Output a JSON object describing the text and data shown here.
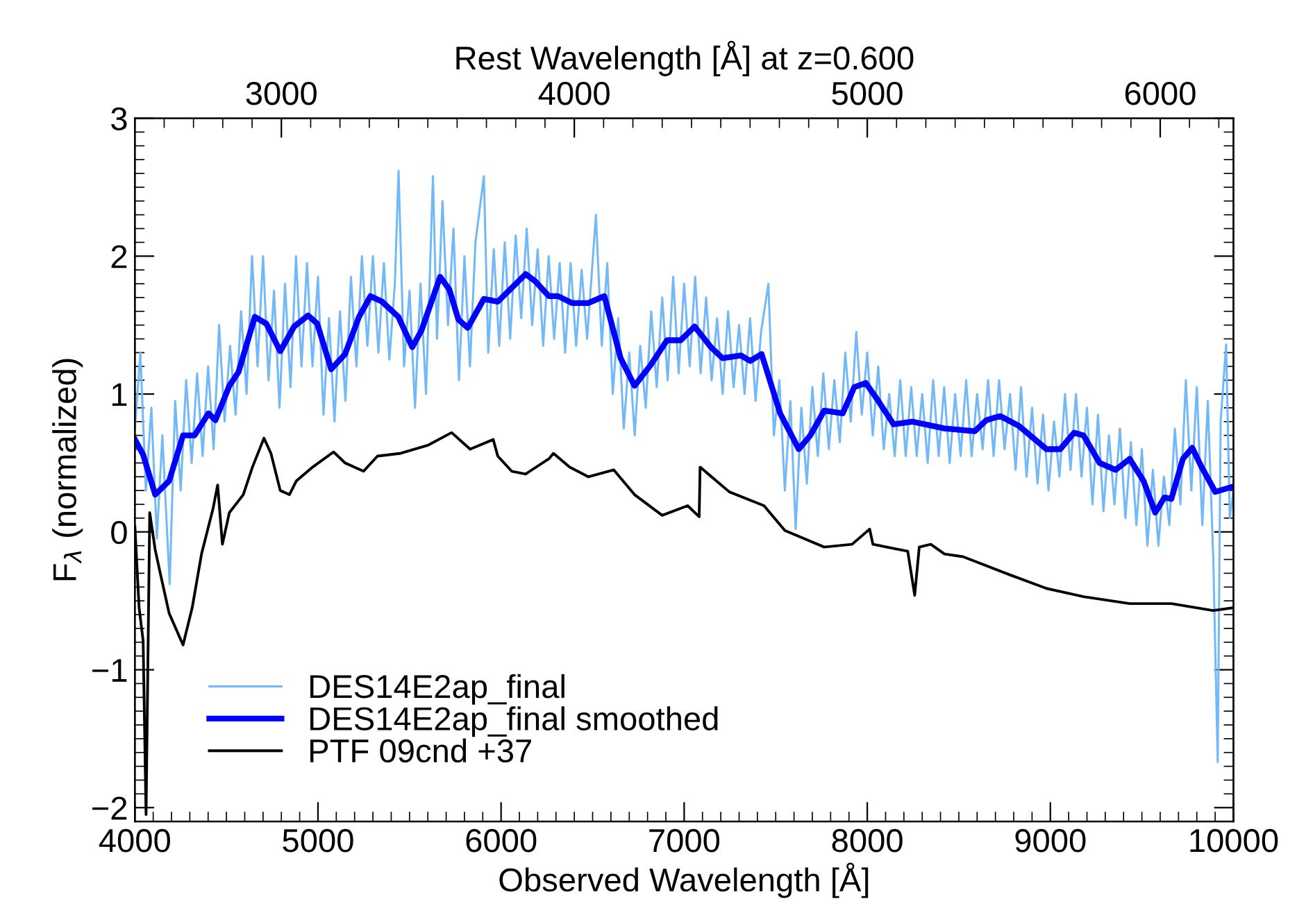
{
  "chart_data": {
    "type": "line",
    "xlabel": "Observed Wavelength [Å]",
    "ylabel": "F$_{λ}$ (normalized)",
    "x2label": "Rest Wavelength [Å] at z=0.600",
    "xlim": [
      4000,
      10000
    ],
    "xticks": [
      4000,
      5000,
      6000,
      7000,
      8000,
      9000,
      10000
    ],
    "x2lim": [
      2500,
      6250
    ],
    "x2ticks": [
      3000,
      4000,
      5000,
      6000
    ],
    "ylim": [
      -2.1,
      3
    ],
    "yticks": [
      {
        "value": -2,
        "label": "−2"
      },
      {
        "value": -1,
        "label": "−1"
      },
      0,
      1,
      2,
      3
    ],
    "legend": "bottom left",
    "grid": false,
    "series": [
      {
        "name": "DES14E2ap_final",
        "color": "#74b9f7",
        "x": [
          4000,
          4030,
          4060,
          4090,
          4120,
          4150,
          4190,
          4220,
          4250,
          4280,
          4310,
          4340,
          4370,
          4400,
          4430,
          4460,
          4490,
          4520,
          4550,
          4580,
          4610,
          4640,
          4670,
          4700,
          4730,
          4760,
          4790,
          4820,
          4850,
          4880,
          4910,
          4940,
          4970,
          5000,
          5030,
          5060,
          5090,
          5120,
          5150,
          5180,
          5210,
          5240,
          5270,
          5300,
          5330,
          5360,
          5390,
          5420,
          5440,
          5470,
          5500,
          5530,
          5560,
          5590,
          5628,
          5650,
          5680,
          5710,
          5740,
          5770,
          5800,
          5830,
          5860,
          5906,
          5930,
          5960,
          5990,
          6020,
          6050,
          6080,
          6110,
          6140,
          6170,
          6200,
          6230,
          6260,
          6290,
          6320,
          6350,
          6380,
          6410,
          6440,
          6470,
          6518,
          6550,
          6580,
          6610,
          6640,
          6670,
          6700,
          6730,
          6760,
          6790,
          6820,
          6850,
          6880,
          6910,
          6940,
          6970,
          7000,
          7030,
          7060,
          7090,
          7120,
          7150,
          7180,
          7210,
          7240,
          7270,
          7300,
          7330,
          7360,
          7390,
          7420,
          7460,
          7490,
          7520,
          7550,
          7580,
          7609,
          7640,
          7670,
          7700,
          7730,
          7760,
          7790,
          7820,
          7850,
          7880,
          7910,
          7940,
          7970,
          8000,
          8030,
          8060,
          8090,
          8120,
          8150,
          8180,
          8210,
          8240,
          8270,
          8300,
          8330,
          8360,
          8390,
          8420,
          8450,
          8480,
          8510,
          8540,
          8570,
          8600,
          8630,
          8660,
          8690,
          8720,
          8750,
          8780,
          8810,
          8840,
          8870,
          8900,
          8930,
          8960,
          8990,
          9020,
          9050,
          9080,
          9110,
          9140,
          9170,
          9200,
          9230,
          9260,
          9290,
          9320,
          9350,
          9380,
          9410,
          9440,
          9470,
          9500,
          9530,
          9560,
          9590,
          9620,
          9650,
          9680,
          9710,
          9740,
          9770,
          9800,
          9830,
          9860,
          9890,
          9914,
          9930,
          9960,
          9980,
          10000
        ],
        "values": [
          0.75,
          1.3,
          0.3,
          0.9,
          -0.05,
          0.7,
          -0.38,
          0.95,
          0.3,
          1.1,
          0.5,
          1.15,
          0.55,
          1.2,
          0.6,
          1.5,
          0.8,
          1.35,
          0.85,
          1.6,
          1.0,
          2.0,
          1.2,
          2.0,
          1.1,
          1.75,
          0.9,
          1.8,
          1.05,
          2.0,
          1.2,
          1.95,
          1.2,
          1.85,
          0.85,
          1.55,
          0.8,
          1.6,
          0.95,
          1.85,
          1.2,
          2.0,
          1.35,
          2.0,
          1.3,
          1.95,
          1.25,
          1.8,
          2.62,
          1.2,
          1.75,
          0.9,
          1.8,
          1.0,
          2.58,
          1.4,
          2.4,
          1.5,
          2.2,
          1.1,
          2.0,
          1.2,
          2.1,
          2.58,
          1.3,
          2.05,
          1.35,
          2.1,
          1.4,
          2.15,
          1.55,
          2.2,
          1.5,
          2.05,
          1.35,
          2.0,
          1.4,
          1.95,
          1.3,
          1.95,
          1.35,
          1.9,
          1.4,
          2.3,
          1.35,
          1.95,
          1.0,
          1.55,
          0.75,
          1.3,
          0.7,
          1.35,
          0.9,
          1.6,
          1.05,
          1.7,
          1.1,
          1.85,
          1.15,
          1.8,
          1.2,
          1.85,
          1.15,
          1.7,
          1.1,
          1.55,
          1.0,
          1.6,
          1.05,
          1.5,
          1.0,
          1.55,
          0.95,
          1.45,
          1.8,
          0.7,
          1.1,
          0.3,
          0.95,
          0.02,
          0.9,
          0.35,
          1.05,
          0.55,
          1.15,
          0.6,
          1.1,
          0.65,
          1.3,
          0.8,
          1.45,
          0.85,
          1.3,
          0.7,
          1.2,
          0.6,
          1.0,
          0.55,
          1.1,
          0.55,
          1.05,
          0.55,
          1.0,
          0.5,
          1.1,
          0.55,
          1.05,
          0.5,
          1.0,
          0.55,
          1.1,
          0.55,
          1.0,
          0.6,
          1.1,
          0.55,
          1.1,
          0.6,
          1.0,
          0.45,
          1.05,
          0.4,
          0.9,
          0.35,
          0.85,
          0.3,
          0.8,
          0.4,
          1.0,
          0.45,
          1.0,
          0.4,
          0.9,
          0.2,
          0.85,
          0.15,
          0.7,
          0.2,
          0.75,
          0.1,
          0.65,
          0.05,
          0.6,
          -0.1,
          0.45,
          -0.1,
          0.4,
          0.05,
          0.75,
          0.2,
          1.1,
          0.3,
          1.05,
          0.05,
          0.95,
          -0.2,
          -1.67,
          0.8,
          1.36,
          0.1,
          0.3
        ]
      },
      {
        "name": "DES14E2ap_final smoothed",
        "color": "#0000ff",
        "x": [
          4000,
          4045,
          4111,
          4187,
          4263,
          4326,
          4402,
          4440,
          4516,
          4566,
          4655,
          4718,
          4794,
          4870,
          4946,
          4996,
          5072,
          5148,
          5224,
          5287,
          5350,
          5439,
          5515,
          5565,
          5667,
          5717,
          5767,
          5818,
          5906,
          5982,
          6058,
          6134,
          6185,
          6261,
          6311,
          6387,
          6476,
          6564,
          6653,
          6729,
          6817,
          6906,
          6981,
          7057,
          7146,
          7209,
          7310,
          7360,
          7423,
          7524,
          7626,
          7689,
          7765,
          7866,
          7929,
          7992,
          8055,
          8144,
          8245,
          8422,
          8587,
          8650,
          8726,
          8827,
          8979,
          9054,
          9130,
          9181,
          9269,
          9357,
          9433,
          9509,
          9573,
          9623,
          9661,
          9724,
          9775,
          9826,
          9901,
          10000
        ],
        "values": [
          0.67,
          0.56,
          0.27,
          0.37,
          0.7,
          0.7,
          0.86,
          0.81,
          1.06,
          1.16,
          1.56,
          1.51,
          1.31,
          1.49,
          1.57,
          1.51,
          1.18,
          1.29,
          1.56,
          1.71,
          1.67,
          1.56,
          1.34,
          1.46,
          1.85,
          1.76,
          1.54,
          1.48,
          1.69,
          1.67,
          1.77,
          1.87,
          1.82,
          1.71,
          1.71,
          1.66,
          1.66,
          1.71,
          1.26,
          1.06,
          1.21,
          1.39,
          1.39,
          1.49,
          1.34,
          1.26,
          1.28,
          1.24,
          1.29,
          0.86,
          0.6,
          0.7,
          0.88,
          0.86,
          1.05,
          1.08,
          0.96,
          0.78,
          0.8,
          0.75,
          0.73,
          0.81,
          0.84,
          0.77,
          0.6,
          0.6,
          0.72,
          0.7,
          0.5,
          0.45,
          0.53,
          0.37,
          0.14,
          0.25,
          0.24,
          0.53,
          0.61,
          0.47,
          0.29,
          0.33
        ]
      },
      {
        "name": "PTF 09cnd +37",
        "color": "#000000",
        "x": [
          4000,
          4023,
          4045,
          4061,
          4081,
          4111,
          4137,
          4187,
          4263,
          4313,
          4364,
          4427,
          4452,
          4478,
          4516,
          4592,
          4642,
          4705,
          4743,
          4794,
          4844,
          4882,
          4971,
          5085,
          5148,
          5249,
          5325,
          5452,
          5603,
          5730,
          5831,
          5957,
          5982,
          6058,
          6134,
          6261,
          6286,
          6374,
          6476,
          6615,
          6729,
          6880,
          7019,
          7082,
          7087,
          7247,
          7436,
          7550,
          7765,
          7917,
          8013,
          8031,
          8221,
          8259,
          8284,
          8347,
          8422,
          8523,
          8776,
          8979,
          9181,
          9433,
          9661,
          9889,
          10000
        ],
        "values": [
          0.04,
          -0.55,
          -0.79,
          -2.05,
          0.14,
          -0.13,
          -0.29,
          -0.59,
          -0.82,
          -0.55,
          -0.16,
          0.17,
          0.34,
          -0.09,
          0.14,
          0.27,
          0.47,
          0.68,
          0.57,
          0.3,
          0.27,
          0.37,
          0.47,
          0.58,
          0.5,
          0.44,
          0.55,
          0.57,
          0.63,
          0.72,
          0.6,
          0.67,
          0.55,
          0.44,
          0.42,
          0.53,
          0.57,
          0.47,
          0.4,
          0.45,
          0.27,
          0.12,
          0.19,
          0.11,
          0.47,
          0.29,
          0.19,
          0.01,
          -0.11,
          -0.09,
          0.02,
          -0.09,
          -0.14,
          -0.46,
          -0.11,
          -0.09,
          -0.16,
          -0.18,
          -0.31,
          -0.41,
          -0.47,
          -0.52,
          -0.52,
          -0.57,
          -0.55
        ]
      }
    ]
  }
}
